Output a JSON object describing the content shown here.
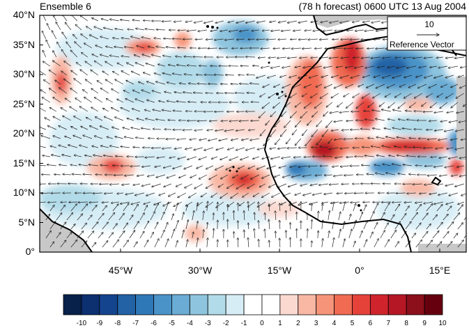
{
  "title_left": "Ensemble 6",
  "title_right": "(78 h forecast) 0600 UTC 13 Aug 2004",
  "y_ticks": [
    "40°N",
    "35°N",
    "30°N",
    "25°N",
    "20°N",
    "15°N",
    "10°N",
    "5°N",
    "0°"
  ],
  "x_ticks": [
    "45°W",
    "30°W",
    "15°W",
    "0°",
    "15°E"
  ],
  "reference_vector": {
    "magnitude": "10",
    "label": "Reference Vector"
  },
  "colorbar": {
    "labels": [
      "-10",
      "-9",
      "-8",
      "-7",
      "-6",
      "-5",
      "-4",
      "-3",
      "-2",
      "-1",
      "0",
      "1",
      "2",
      "3",
      "4",
      "5",
      "6",
      "7",
      "8",
      "9",
      "10"
    ],
    "colors": [
      "#08214a",
      "#0c3070",
      "#15448f",
      "#2262a5",
      "#2f78b8",
      "#4a93c8",
      "#6aacd4",
      "#8ec4de",
      "#b2dbe9",
      "#d7edf5",
      "#ffffff",
      "#ffffff",
      "#fbd9d0",
      "#f8b8a4",
      "#f69479",
      "#f06b51",
      "#e5433a",
      "#cf242b",
      "#b51824",
      "#8c0f1c",
      "#66000f"
    ]
  },
  "colors": {
    "land_mask": "#c8c8c8",
    "coast": "#000000"
  }
}
